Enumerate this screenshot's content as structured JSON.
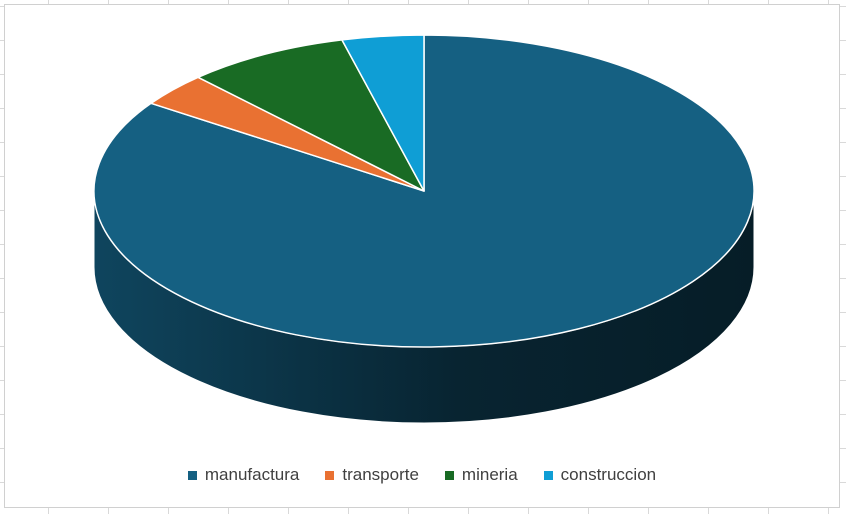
{
  "chart_data": {
    "type": "pie",
    "style": "3d",
    "categories": [
      "manufactura",
      "transporte",
      "mineria",
      "construccion"
    ],
    "values": [
      84.5,
      3.5,
      8.0,
      4.0
    ],
    "colors": [
      "#156082",
      "#e97132",
      "#196b24",
      "#0f9ed5"
    ],
    "legend_position": "bottom"
  }
}
